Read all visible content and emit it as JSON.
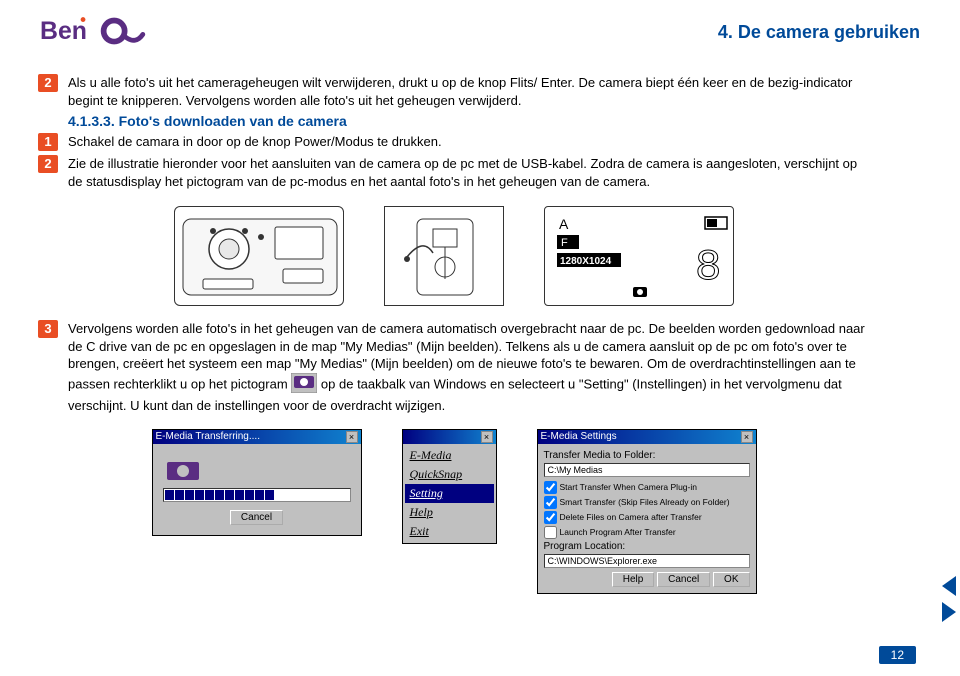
{
  "brand": {
    "name": "BenQ",
    "primary": "#5a2d82",
    "accent": "#e94e24",
    "heading": "#004a99"
  },
  "page_title": "4. De camera gebruiken",
  "page_number": "12",
  "block1": {
    "badge": "2",
    "text": "Als u alle foto's uit het camerageheugen wilt verwijderen, drukt u op de knop Flits/ Enter. De camera biept één keer en de bezig-indicator begint te knipperen. Vervolgens worden alle foto's uit het geheugen verwijderd."
  },
  "subsection": "4.1.3.3. Foto's downloaden van de camera",
  "step_a": {
    "badge": "1",
    "text": "Schakel de camara in door op de knop Power/Modus te drukken."
  },
  "step_b": {
    "badge": "2",
    "text": "Zie de illustratie hieronder voor het aansluiten van de camera op de pc met de USB-kabel. Zodra de camera is aangesloten, verschijnt op de statusdisplay het pictogram van de pc-modus en het aantal foto's in het geheugen van de camera."
  },
  "display": {
    "mode": "A",
    "flash": "F",
    "res": "1280X1024",
    "count": "8"
  },
  "step_c": {
    "badge": "3",
    "part1": "Vervolgens worden alle foto's in het geheugen van de camera automatisch overgebracht naar de pc. De beelden worden gedownload naar de C drive van de pc en opgeslagen in de map \"My Medias\" (Mijn beelden). Telkens als u de camera aansluit op de pc om foto's over te brengen, creëert het systeem een map \"My Medias\" (Mijn beelden) om de nieuwe foto's te bewaren. Om de overdrachtinstellingen aan te passen rechterklikt u op het pictogram",
    "part2": "op de taakbalk van Windows en selecteert u \"Setting\" (Instellingen) in het vervolgmenu dat verschijnt. U kunt dan de instellingen voor de overdracht wijzigen."
  },
  "win_transfer": {
    "title": "E-Media Transferring....",
    "cancel": "Cancel"
  },
  "win_menu": {
    "title": "",
    "items": [
      "E-Media",
      "QuickSnap",
      "Setting",
      "Help",
      "Exit"
    ],
    "selected": 2
  },
  "win_settings": {
    "title": "E-Media Settings",
    "label_folder": "Transfer Media to Folder:",
    "folder_path": "C:\\My Medias",
    "chk1": "Start Transfer When Camera Plug-in",
    "chk2": "Smart Transfer (Skip Files Already on Folder)",
    "chk3": "Delete Files on Camera after Transfer",
    "chk4": "Launch Program After Transfer",
    "label_program": "Program Location:",
    "program_path": "C:\\WINDOWS\\Explorer.exe",
    "btn_help": "Help",
    "btn_cancel": "Cancel",
    "btn_ok": "OK"
  }
}
